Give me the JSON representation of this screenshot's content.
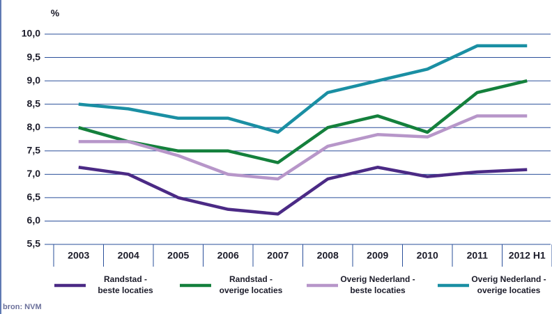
{
  "chart_data": {
    "type": "line",
    "y_label": "%",
    "source": "bron: NVM",
    "categories": [
      "2003",
      "2004",
      "2005",
      "2006",
      "2007",
      "2008",
      "2009",
      "2010",
      "2011",
      "2012 H1"
    ],
    "series": [
      {
        "name": "Randstad -\nbeste locaties",
        "color": "#4b2a85",
        "values": [
          7.15,
          7.0,
          6.5,
          6.25,
          6.15,
          6.9,
          7.15,
          6.95,
          7.05,
          7.1
        ]
      },
      {
        "name": "Randstad -\noverige locaties",
        "color": "#14803c",
        "values": [
          8.0,
          7.7,
          7.5,
          7.5,
          7.25,
          8.0,
          8.25,
          7.9,
          8.75,
          9.0
        ]
      },
      {
        "name": "Overig Nederland -\nbeste locaties",
        "color": "#b796c9",
        "values": [
          7.7,
          7.7,
          7.4,
          7.0,
          6.9,
          7.6,
          7.85,
          7.8,
          8.25,
          8.25
        ]
      },
      {
        "name": "Overig Nederland -\noverige locaties",
        "color": "#1a8fa3",
        "values": [
          8.5,
          8.4,
          8.2,
          8.2,
          7.9,
          8.75,
          9.0,
          9.25,
          9.75,
          9.75
        ]
      }
    ],
    "ylim": [
      5.5,
      10.0
    ],
    "yticks": [
      {
        "value": 5.5,
        "label": "5,5"
      },
      {
        "value": 6.0,
        "label": "6,0"
      },
      {
        "value": 6.5,
        "label": "6,5"
      },
      {
        "value": 7.0,
        "label": "7,0"
      },
      {
        "value": 7.5,
        "label": "7,5"
      },
      {
        "value": 8.0,
        "label": "8,0"
      },
      {
        "value": 8.5,
        "label": "8,5"
      },
      {
        "value": 9.0,
        "label": "9,0"
      },
      {
        "value": 9.5,
        "label": "9,5"
      },
      {
        "value": 10.0,
        "label": "10,0"
      }
    ],
    "grid": true
  }
}
